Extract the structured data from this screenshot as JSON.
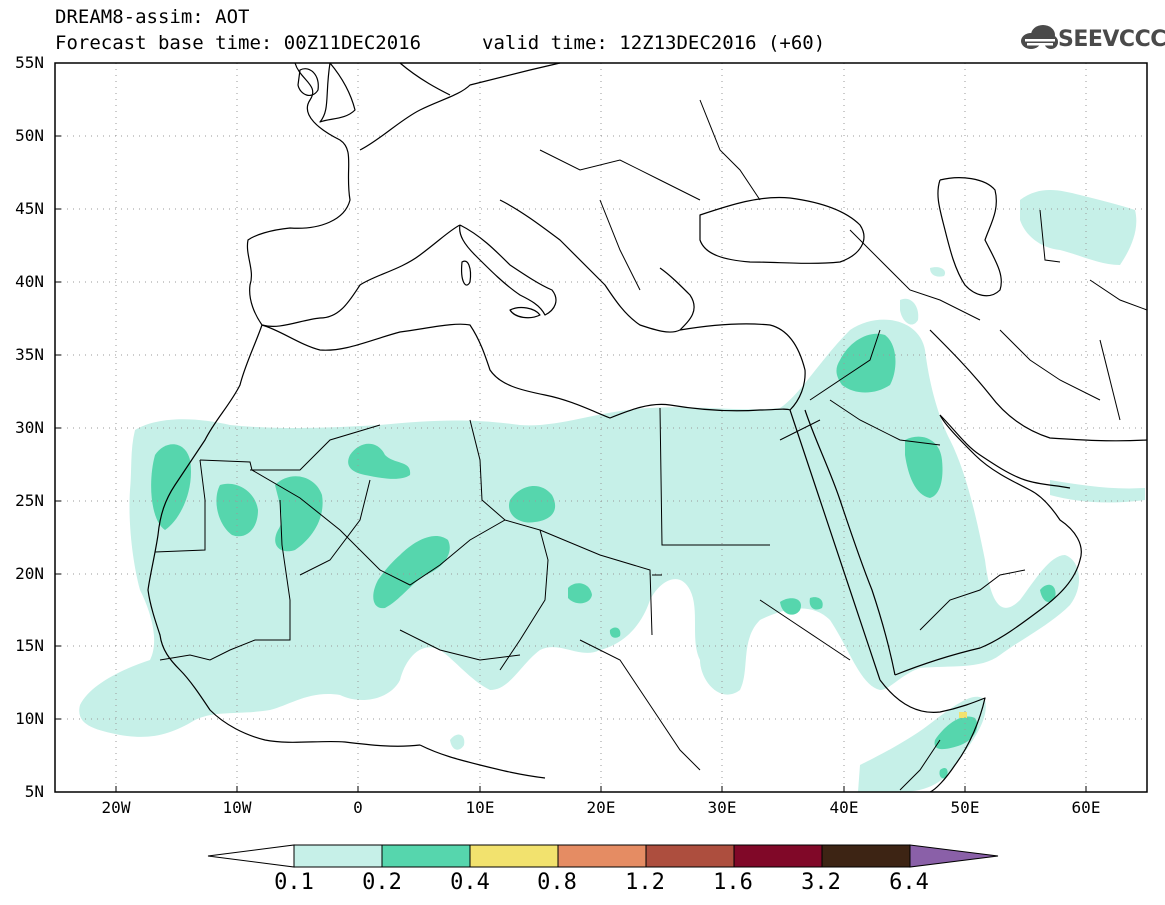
{
  "header": {
    "line1": "DREAM8-assim: AOT",
    "line2": "Forecast base time: 00Z11DEC2016",
    "valid": "valid time: 12Z13DEC2016 (+60)"
  },
  "logo": {
    "text": "SEEVCCC",
    "icon": "cloud-logo-icon"
  },
  "map": {
    "variable": "AOT",
    "lat_labels": [
      "55N",
      "50N",
      "45N",
      "40N",
      "35N",
      "30N",
      "25N",
      "20N",
      "15N",
      "10N",
      "5N"
    ],
    "lon_labels": [
      "20W",
      "10W",
      "0",
      "10E",
      "20E",
      "30E",
      "40E",
      "50E",
      "60E"
    ],
    "lat_range": [
      5,
      55
    ],
    "lon_range": [
      -25,
      65
    ],
    "grid": "dotted"
  },
  "legend": {
    "levels": [
      "0.1",
      "0.2",
      "0.4",
      "0.8",
      "1.2",
      "1.6",
      "3.2",
      "6.4"
    ],
    "colors": [
      "#ffffff",
      "#c6f0e8",
      "#56d6ad",
      "#f2e26e",
      "#e58c63",
      "#ad4e3e",
      "#800828",
      "#3d2414",
      "#8a60a8"
    ]
  }
}
